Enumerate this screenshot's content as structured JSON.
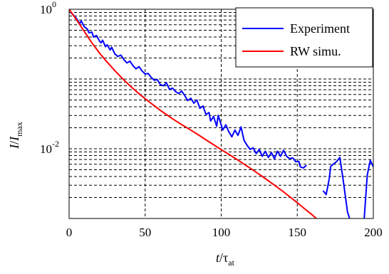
{
  "chart_data": {
    "type": "line",
    "xlabel_main": "t",
    "xlabel_sep": "/",
    "xlabel_greek": "τ",
    "xlabel_sub": "at",
    "ylabel_main": "I",
    "ylabel_sep": "/",
    "ylabel_var": "I",
    "ylabel_sub": "max",
    "xlim": [
      0,
      200
    ],
    "ylim_log10": [
      -3.0,
      0
    ],
    "yscale": "log",
    "grid": true,
    "legend_position": "top-right",
    "x_ticks": [
      {
        "value": 0,
        "label": "0"
      },
      {
        "value": 50,
        "label": "50"
      },
      {
        "value": 100,
        "label": "100"
      },
      {
        "value": 150,
        "label": "150"
      },
      {
        "value": 200,
        "label": "200"
      }
    ],
    "y_ticks": [
      {
        "exp": 0,
        "base": "10",
        "sup": "0"
      },
      {
        "exp": -2,
        "base": "10",
        "sup": "-2"
      }
    ],
    "series": [
      {
        "name": "Experiment",
        "color": "#0000ff",
        "segments": [
          [
            [
              1,
              0.9
            ],
            [
              3,
              0.82
            ],
            [
              5,
              0.73
            ],
            [
              7,
              0.62
            ],
            [
              8,
              0.68
            ],
            [
              10,
              0.56
            ],
            [
              12,
              0.52
            ],
            [
              13,
              0.46
            ],
            [
              15,
              0.47
            ],
            [
              16,
              0.4
            ],
            [
              18,
              0.42
            ],
            [
              20,
              0.35
            ],
            [
              21,
              0.33
            ],
            [
              22,
              0.36
            ],
            [
              24,
              0.29
            ],
            [
              25,
              0.31
            ],
            [
              27,
              0.26
            ],
            [
              28,
              0.285
            ],
            [
              30,
              0.23
            ],
            [
              32,
              0.21
            ],
            [
              34,
              0.22
            ],
            [
              36,
              0.19
            ],
            [
              38,
              0.17
            ],
            [
              40,
              0.18
            ],
            [
              42,
              0.155
            ],
            [
              44,
              0.14
            ],
            [
              46,
              0.15
            ],
            [
              48,
              0.13
            ],
            [
              50,
              0.118
            ],
            [
              52,
              0.12
            ],
            [
              54,
              0.105
            ],
            [
              56,
              0.096
            ],
            [
              58,
              0.098
            ],
            [
              60,
              0.083
            ],
            [
              62,
              0.08
            ],
            [
              64,
              0.088
            ],
            [
              66,
              0.071
            ],
            [
              68,
              0.074
            ],
            [
              70,
              0.066
            ],
            [
              72,
              0.062
            ],
            [
              74,
              0.067
            ],
            [
              76,
              0.058
            ],
            [
              78,
              0.049
            ],
            [
              80,
              0.053
            ],
            [
              82,
              0.045
            ],
            [
              84,
              0.05
            ],
            [
              86,
              0.038
            ],
            [
              88,
              0.041
            ],
            [
              90,
              0.031
            ],
            [
              92,
              0.033
            ],
            [
              93,
              0.025
            ],
            [
              95,
              0.029
            ],
            [
              97,
              0.021
            ],
            [
              98,
              0.03
            ],
            [
              100,
              0.022
            ],
            [
              101,
              0.0185
            ],
            [
              103,
              0.022
            ],
            [
              105,
              0.0175
            ],
            [
              107,
              0.0148
            ],
            [
              109,
              0.0185
            ],
            [
              111,
              0.0155
            ],
            [
              113,
              0.0205
            ],
            [
              115,
              0.0132
            ],
            [
              117,
              0.0112
            ],
            [
              119,
              0.0098
            ],
            [
              121,
              0.0103
            ],
            [
              123,
              0.0085
            ],
            [
              125,
              0.0098
            ],
            [
              127,
              0.0078
            ],
            [
              129,
              0.0092
            ],
            [
              131,
              0.0075
            ],
            [
              133,
              0.0088
            ],
            [
              135,
              0.0072
            ],
            [
              137,
              0.0092
            ],
            [
              139,
              0.0078
            ],
            [
              141,
              0.0095
            ],
            [
              143,
              0.0078
            ],
            [
              145,
              0.0072
            ],
            [
              147,
              0.0074
            ],
            [
              149,
              0.0065
            ],
            [
              151,
              0.0066
            ],
            [
              152,
              0.0055
            ],
            [
              154,
              0.0053
            ],
            [
              156,
              0.0058
            ]
          ],
          [
            [
              167,
              0.0025
            ],
            [
              169,
              0.0022
            ],
            [
              171,
              0.0037
            ],
            [
              172,
              0.0056
            ],
            [
              174,
              0.0061
            ],
            [
              176,
              0.0066
            ],
            [
              178,
              0.0075
            ],
            [
              180,
              0.0038
            ],
            [
              182,
              0.0018
            ],
            [
              183,
              0.00125
            ],
            [
              185,
              0.0009
            ],
            [
              187,
              0.0009
            ]
          ],
          [
            [
              194,
              0.001
            ],
            [
              196,
              0.0042
            ],
            [
              198,
              0.0068
            ],
            [
              200,
              0.0055
            ]
          ]
        ]
      },
      {
        "name": "RW simu.",
        "color": "#ff0000",
        "points": [
          [
            0,
            1.0
          ],
          [
            5,
            0.7
          ],
          [
            10,
            0.48
          ],
          [
            15,
            0.33
          ],
          [
            20,
            0.235
          ],
          [
            25,
            0.175
          ],
          [
            30,
            0.132
          ],
          [
            35,
            0.102
          ],
          [
            40,
            0.08
          ],
          [
            45,
            0.064
          ],
          [
            50,
            0.052
          ],
          [
            55,
            0.043
          ],
          [
            60,
            0.0355
          ],
          [
            65,
            0.0298
          ],
          [
            70,
            0.0252
          ],
          [
            75,
            0.0215
          ],
          [
            80,
            0.0185
          ],
          [
            85,
            0.0158
          ],
          [
            90,
            0.0134
          ],
          [
            95,
            0.0114
          ],
          [
            100,
            0.0097
          ],
          [
            105,
            0.0083
          ],
          [
            110,
            0.0071
          ],
          [
            115,
            0.006
          ],
          [
            120,
            0.0051
          ],
          [
            125,
            0.0043
          ],
          [
            130,
            0.0036
          ],
          [
            135,
            0.003
          ],
          [
            140,
            0.0025
          ],
          [
            145,
            0.00205
          ],
          [
            150,
            0.00168
          ],
          [
            155,
            0.00137
          ],
          [
            160,
            0.00112
          ],
          [
            163,
            0.00098
          ]
        ]
      }
    ]
  }
}
